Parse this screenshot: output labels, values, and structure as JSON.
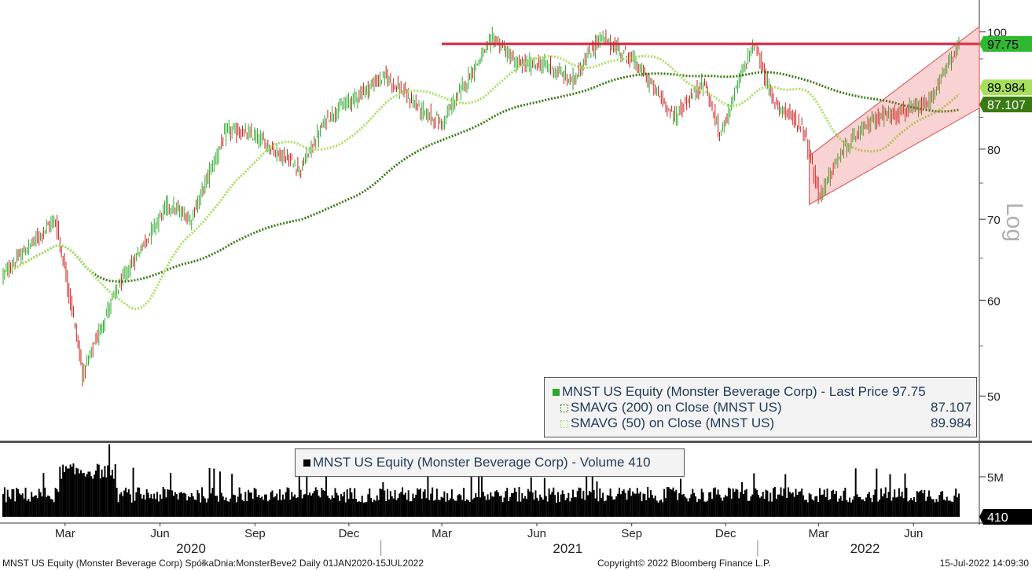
{
  "legend_price": {
    "items": [
      {
        "label": "MNST US Equity (Monster Beverage Corp) - Last Price 97.75",
        "value": "",
        "color": "#2ea82e",
        "swatch": "solid"
      },
      {
        "label": "SMAVG (200)  on Close (MNST US)",
        "value": "87.107",
        "color": "#3a7a12",
        "swatch": "dotted"
      },
      {
        "label": "SMAVG (50)  on Close (MNST US)",
        "value": "89.984",
        "color": "#a6e05a",
        "swatch": "dotted"
      }
    ]
  },
  "legend_volume": {
    "label": "MNST US Equity (Monster Beverage Corp) - Volume 410"
  },
  "footer": {
    "left": "MNST US Equity (Monster Beverage Corp) SpółkaDnia:MonsterBeve2  Daily 01JAN2020-15JUL2022",
    "center": "Copyright© 2022 Bloomberg Finance L.P.",
    "right": "15-Jul-2022 14:09:30"
  },
  "chart_data": {
    "type": "candlestick",
    "title": "",
    "scale": "log",
    "ylim": [
      46,
      105
    ],
    "y_ticks": [
      50,
      60,
      70,
      80,
      100
    ],
    "y_axis_label": "Log",
    "x_month_labels": [
      "Mar",
      "Jun",
      "Sep",
      "Dec",
      "Mar",
      "Jun",
      "Sep",
      "Dec",
      "Mar",
      "Jun"
    ],
    "x_year_labels": [
      "2020",
      "2021",
      "2022"
    ],
    "volume_ticks": [
      "5M"
    ],
    "price_path": [
      {
        "date": "2020-01-01",
        "close": 63
      },
      {
        "date": "2020-02-20",
        "close": 70
      },
      {
        "date": "2020-03-18",
        "close": 52
      },
      {
        "date": "2020-04-15",
        "close": 60
      },
      {
        "date": "2020-06-08",
        "close": 72
      },
      {
        "date": "2020-07-01",
        "close": 70
      },
      {
        "date": "2020-08-05",
        "close": 83
      },
      {
        "date": "2020-09-01",
        "close": 82
      },
      {
        "date": "2020-10-15",
        "close": 77
      },
      {
        "date": "2020-11-10",
        "close": 85
      },
      {
        "date": "2021-01-05",
        "close": 92
      },
      {
        "date": "2021-02-10",
        "close": 86
      },
      {
        "date": "2021-03-01",
        "close": 84
      },
      {
        "date": "2021-04-20",
        "close": 99
      },
      {
        "date": "2021-05-12",
        "close": 94
      },
      {
        "date": "2021-06-10",
        "close": 94
      },
      {
        "date": "2021-07-05",
        "close": 91
      },
      {
        "date": "2021-08-01",
        "close": 99
      },
      {
        "date": "2021-09-01",
        "close": 95
      },
      {
        "date": "2021-10-12",
        "close": 85
      },
      {
        "date": "2021-11-10",
        "close": 91
      },
      {
        "date": "2021-11-25",
        "close": 82
      },
      {
        "date": "2021-12-28",
        "close": 98
      },
      {
        "date": "2022-01-15",
        "close": 88
      },
      {
        "date": "2022-02-15",
        "close": 83
      },
      {
        "date": "2022-03-01",
        "close": 73
      },
      {
        "date": "2022-03-25",
        "close": 80
      },
      {
        "date": "2022-04-25",
        "close": 85
      },
      {
        "date": "2022-05-25",
        "close": 86
      },
      {
        "date": "2022-06-15",
        "close": 87
      },
      {
        "date": "2022-07-15",
        "close": 97.75
      }
    ],
    "series": [
      {
        "name": "MNST US Equity (Monster Beverage Corp) - Last Price",
        "last": 97.75,
        "color": "#2ea82e"
      },
      {
        "name": "SMAVG (200)  on Close (MNST US)",
        "last": 87.107,
        "color": "#3a7a12"
      },
      {
        "name": "SMAVG (50)  on Close (MNST US)",
        "last": 89.984,
        "color": "#a6e05a"
      },
      {
        "name": "MNST US Equity (Monster Beverage Corp) - Volume",
        "last": 410,
        "color": "#000000"
      }
    ],
    "resistance_level": 97.75,
    "channel": {
      "start": "2022-02-20",
      "end": "2022-07-15",
      "lower_start": 72,
      "lower_end": 86.5,
      "upper_start": 79,
      "upper_end": 101
    },
    "value_tags": [
      {
        "value": "97.75",
        "bg": "#31b831",
        "fg": "#000000"
      },
      {
        "value": "89.984",
        "bg": "#a6e05a",
        "fg": "#000000"
      },
      {
        "value": "87.107",
        "bg": "#3a7a12",
        "fg": "#ffffff"
      },
      {
        "value": "410",
        "bg": "#000000",
        "fg": "#ffffff"
      }
    ]
  }
}
